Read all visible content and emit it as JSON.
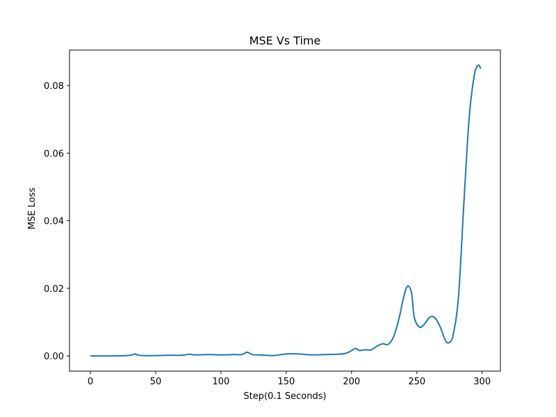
{
  "chart_data": {
    "type": "line",
    "title": "MSE Vs Time",
    "xlabel": "Step(0.1 Seconds)",
    "ylabel": "MSE Loss",
    "xlim": [
      -16,
      314
    ],
    "ylim": [
      -0.0045,
      0.0905
    ],
    "xticks": [
      0,
      50,
      100,
      150,
      200,
      250,
      300
    ],
    "xtick_labels": [
      "0",
      "50",
      "100",
      "150",
      "200",
      "250",
      "300"
    ],
    "yticks": [
      0.0,
      0.02,
      0.04,
      0.06,
      0.08
    ],
    "ytick_labels": [
      "0.00",
      "0.02",
      "0.04",
      "0.06",
      "0.08"
    ],
    "grid": false,
    "legend": "none",
    "series": [
      {
        "color": "#1f77b4",
        "x": [
          0,
          10,
          20,
          28,
          32,
          34,
          36,
          40,
          50,
          60,
          70,
          76,
          80,
          90,
          100,
          110,
          116,
          120,
          124,
          130,
          140,
          150,
          158,
          162,
          170,
          180,
          190,
          196,
          200,
          203,
          206,
          210,
          215,
          220,
          224,
          228,
          232,
          236,
          240,
          243,
          246,
          248,
          252,
          256,
          260,
          264,
          268,
          272,
          275,
          278,
          282,
          286,
          290,
          294,
          297,
          299
        ],
        "y": [
          0.0,
          0.0,
          0.0,
          0.0001,
          0.0003,
          0.0006,
          0.0003,
          0.0001,
          0.0001,
          0.0002,
          0.0002,
          0.0005,
          0.0003,
          0.0004,
          0.0003,
          0.0004,
          0.0004,
          0.0011,
          0.0004,
          0.0003,
          0.0001,
          0.0006,
          0.0006,
          0.0005,
          0.0003,
          0.0004,
          0.0005,
          0.0008,
          0.0016,
          0.0022,
          0.0016,
          0.0018,
          0.0018,
          0.003,
          0.0036,
          0.0034,
          0.0055,
          0.0105,
          0.0175,
          0.0207,
          0.0185,
          0.0115,
          0.0085,
          0.0095,
          0.0115,
          0.0112,
          0.0085,
          0.0045,
          0.004,
          0.0065,
          0.018,
          0.045,
          0.07,
          0.083,
          0.086,
          0.085
        ]
      }
    ]
  }
}
